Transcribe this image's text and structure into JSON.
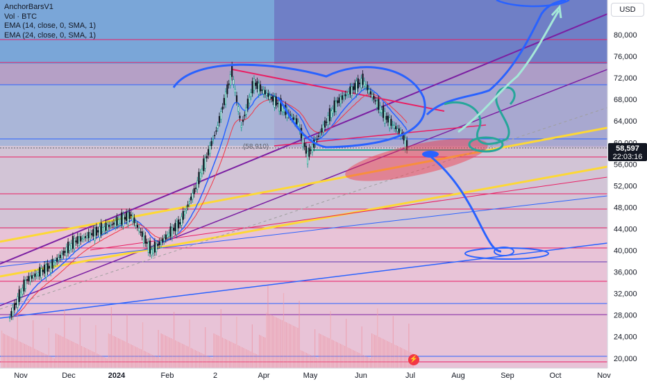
{
  "legend": {
    "title": "AnchorBarsV1",
    "volume": "Vol · BTC",
    "ema1": "EMA (14, close, 0, SMA, 1)",
    "ema2": "EMA (24, close, 0, SMA, 1)"
  },
  "currency_button": "USD",
  "current_price_label": "58,597",
  "countdown_label": "22:03:16",
  "level_label": "(58,910)",
  "colors": {
    "background": "#ffffff",
    "pink_zone": "#e91e63",
    "blue_zone": "#2962ff",
    "purple_line": "#7b1fa2",
    "yellow_line": "#ffeb3b",
    "drawing_blue": "#2962ff",
    "drawing_teal": "#009688",
    "drawing_mint": "#a5e8d8",
    "candle_up": "#089981",
    "candle_down": "#f23645",
    "ema14": "#2962ff",
    "ema24": "#f23645"
  },
  "chart_data": {
    "type": "candlestick",
    "symbol": "BTC",
    "y_axis": {
      "min": 18000,
      "max": 84000,
      "ticks": [
        "80,000",
        "76,000",
        "72,000",
        "68,000",
        "64,000",
        "60,000",
        "56,000",
        "52,000",
        "48,000",
        "44,000",
        "40,000",
        "36,000",
        "32,000",
        "28,000",
        "24,000",
        "20,000"
      ]
    },
    "x_axis": {
      "ticks": [
        "Nov",
        "Dec",
        "2024",
        "Feb",
        "2",
        "Apr",
        "May",
        "Jun",
        "Jul",
        "Aug",
        "Sep",
        "Oct",
        "Nov"
      ]
    },
    "last_price": 58597,
    "marked_level": 58910,
    "price_path": [
      {
        "date": "2023-10-25",
        "close": 27500
      },
      {
        "date": "2023-11-05",
        "close": 34500
      },
      {
        "date": "2023-11-20",
        "close": 37000
      },
      {
        "date": "2023-12-05",
        "close": 41500
      },
      {
        "date": "2023-12-20",
        "close": 43500
      },
      {
        "date": "2024-01-10",
        "close": 46500
      },
      {
        "date": "2024-01-23",
        "close": 39800
      },
      {
        "date": "2024-02-10",
        "close": 45000
      },
      {
        "date": "2024-02-20",
        "close": 51500
      },
      {
        "date": "2024-03-05",
        "close": 63000
      },
      {
        "date": "2024-03-14",
        "close": 73000
      },
      {
        "date": "2024-03-20",
        "close": 63000
      },
      {
        "date": "2024-03-28",
        "close": 71000
      },
      {
        "date": "2024-04-13",
        "close": 67000
      },
      {
        "date": "2024-04-25",
        "close": 63500
      },
      {
        "date": "2024-05-01",
        "close": 57500
      },
      {
        "date": "2024-05-20",
        "close": 67500
      },
      {
        "date": "2024-06-05",
        "close": 71500
      },
      {
        "date": "2024-06-20",
        "close": 64500
      },
      {
        "date": "2024-06-30",
        "close": 61500
      },
      {
        "date": "2024-07-04",
        "close": 58597
      }
    ]
  }
}
